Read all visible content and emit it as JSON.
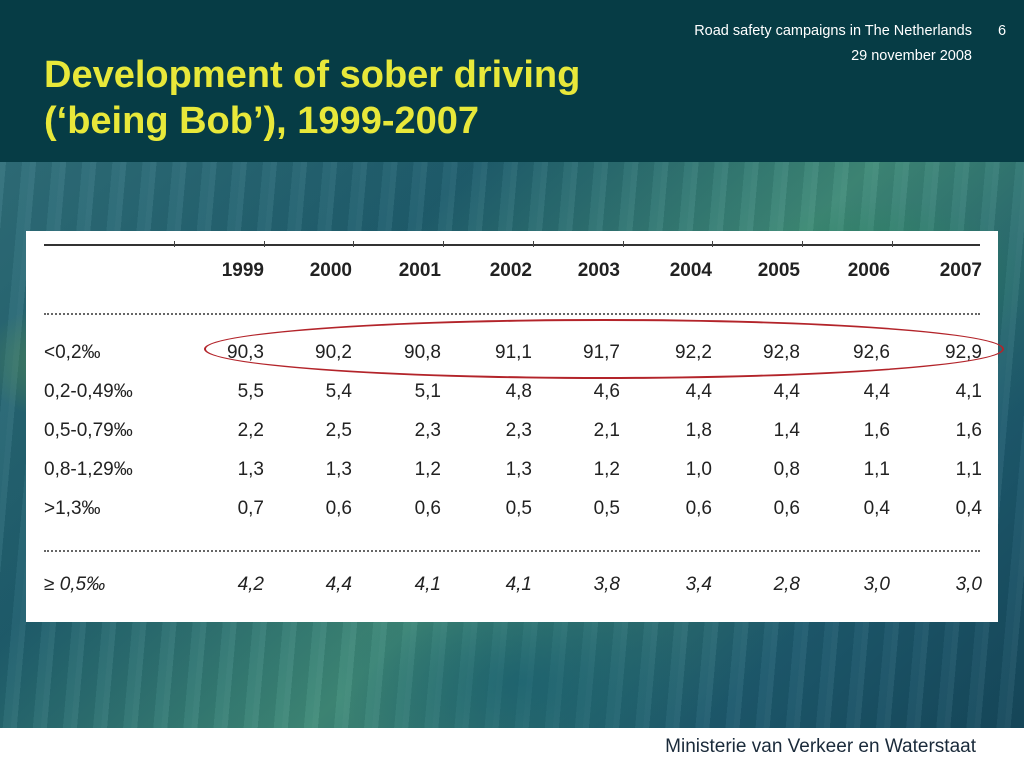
{
  "header": {
    "title_line1": "Development of sober driving",
    "title_line2": "(‘being Bob’), 1999-2007",
    "presentation_name": "Road safety campaigns in The Netherlands",
    "date": "29 november 2008",
    "slide_number": "6"
  },
  "footer": {
    "ministry": "Ministerie van Verkeer en Waterstaat"
  },
  "colors": {
    "header_bg": "#063c45",
    "title": "#e8e83a",
    "highlight_oval": "#b3242a"
  },
  "chart_data": {
    "type": "table",
    "columns": [
      "1999",
      "2000",
      "2001",
      "2002",
      "2003",
      "2004",
      "2005",
      "2006",
      "2007"
    ],
    "rows": [
      {
        "label": "<0,2‰",
        "values": [
          "90,3",
          "90,2",
          "90,8",
          "91,1",
          "91,7",
          "92,2",
          "92,8",
          "92,6",
          "92,9"
        ]
      },
      {
        "label": "0,2-0,49‰",
        "values": [
          "5,5",
          "5,4",
          "5,1",
          "4,8",
          "4,6",
          "4,4",
          "4,4",
          "4,4",
          "4,1"
        ]
      },
      {
        "label": "0,5-0,79‰",
        "values": [
          "2,2",
          "2,5",
          "2,3",
          "2,3",
          "2,1",
          "1,8",
          "1,4",
          "1,6",
          "1,6"
        ]
      },
      {
        "label": "0,8-1,29‰",
        "values": [
          "1,3",
          "1,3",
          "1,2",
          "1,3",
          "1,2",
          "1,0",
          "0,8",
          "1,1",
          "1,1"
        ]
      },
      {
        "label": ">1,3‰",
        "values": [
          "0,7",
          "0,6",
          "0,6",
          "0,5",
          "0,5",
          "0,6",
          "0,6",
          "0,4",
          "0,4"
        ]
      }
    ],
    "total": {
      "label": "≥ 0,5‰",
      "values": [
        "4,2",
        "4,4",
        "4,1",
        "4,1",
        "3,8",
        "3,4",
        "2,8",
        "3,0",
        "3,0"
      ]
    }
  }
}
